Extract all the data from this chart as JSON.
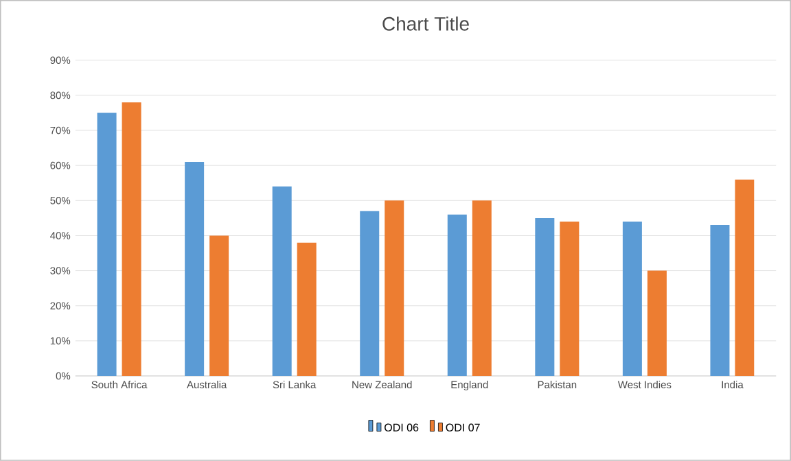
{
  "chart_data": {
    "type": "bar",
    "title": "Chart Title",
    "categories": [
      "South Africa",
      "Australia",
      "Sri Lanka",
      "New Zealand",
      "England",
      "Pakistan",
      "West Indies",
      "India"
    ],
    "series": [
      {
        "name": "ODI 06",
        "color": "#5b9bd5",
        "values": [
          75,
          61,
          54,
          47,
          46,
          45,
          44,
          43
        ]
      },
      {
        "name": "ODI 07",
        "color": "#ed7d31",
        "values": [
          78,
          40,
          38,
          50,
          50,
          44,
          30,
          56
        ]
      }
    ],
    "ylim": [
      0,
      90
    ],
    "yticks": [
      {
        "value": 0,
        "label": "0%"
      },
      {
        "value": 10,
        "label": "10%"
      },
      {
        "value": 20,
        "label": "20%"
      },
      {
        "value": 30,
        "label": "30%"
      },
      {
        "value": 40,
        "label": "40%"
      },
      {
        "value": 50,
        "label": "50%"
      },
      {
        "value": 60,
        "label": "60%"
      },
      {
        "value": 70,
        "label": "70%"
      },
      {
        "value": 80,
        "label": "80%"
      },
      {
        "value": 90,
        "label": "90%"
      }
    ],
    "grid": "y",
    "legend": "bottom"
  }
}
